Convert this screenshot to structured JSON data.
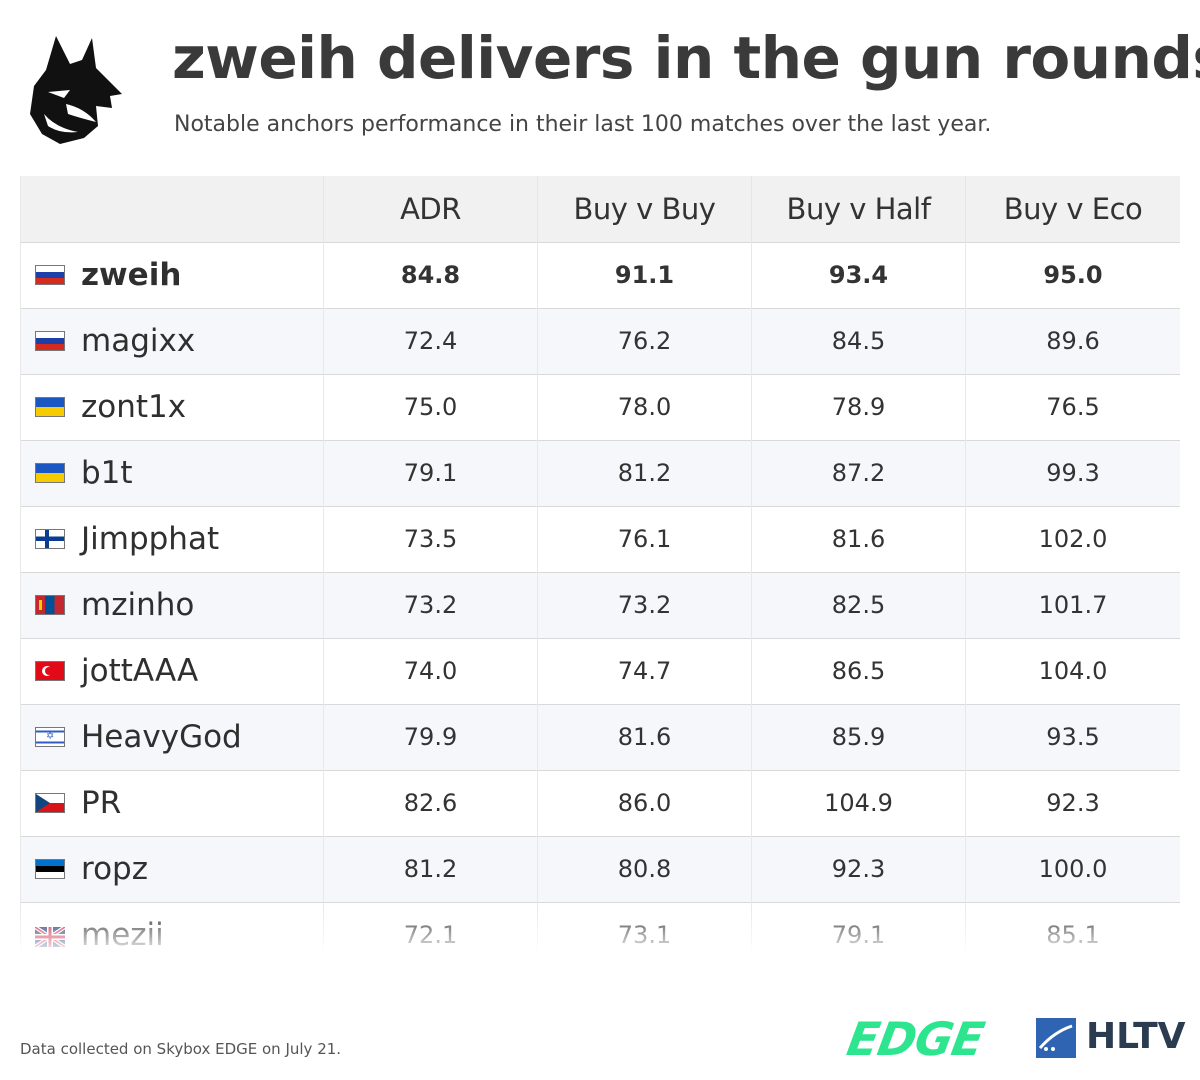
{
  "header": {
    "title": "zweih delivers in the gun rounds",
    "subtitle": "Notable anchors performance in their last 100 matches over the last year."
  },
  "icons": {
    "team_logo": "wolf-head-logo-icon",
    "hltv_mark": "hltv-shield-icon"
  },
  "colors": {
    "edge_green": "#2ee58f",
    "hltv_blue": "#2f64b2",
    "header_row_bg": "#f1f1f1",
    "alt_row_bg": "#f6f7fb"
  },
  "table": {
    "columns": [
      "",
      "ADR",
      "Buy v Buy",
      "Buy v Half",
      "Buy v Eco"
    ],
    "rows": [
      {
        "player": "zweih",
        "flag": "ru",
        "values": [
          "84.8",
          "91.1",
          "93.4",
          "95.0"
        ],
        "highlight": true
      },
      {
        "player": "magixx",
        "flag": "ru",
        "values": [
          "72.4",
          "76.2",
          "84.5",
          "89.6"
        ]
      },
      {
        "player": "zont1x",
        "flag": "ua",
        "values": [
          "75.0",
          "78.0",
          "78.9",
          "76.5"
        ]
      },
      {
        "player": "b1t",
        "flag": "ua",
        "values": [
          "79.1",
          "81.2",
          "87.2",
          "99.3"
        ]
      },
      {
        "player": "Jimpphat",
        "flag": "fi",
        "values": [
          "73.5",
          "76.1",
          "81.6",
          "102.0"
        ]
      },
      {
        "player": "mzinho",
        "flag": "mn",
        "values": [
          "73.2",
          "73.2",
          "82.5",
          "101.7"
        ]
      },
      {
        "player": "jottAAA",
        "flag": "tr",
        "values": [
          "74.0",
          "74.7",
          "86.5",
          "104.0"
        ]
      },
      {
        "player": "HeavyGod",
        "flag": "il",
        "values": [
          "79.9",
          "81.6",
          "85.9",
          "93.5"
        ]
      },
      {
        "player": "PR",
        "flag": "cz",
        "values": [
          "82.6",
          "86.0",
          "104.9",
          "92.3"
        ]
      },
      {
        "player": "ropz",
        "flag": "ee",
        "values": [
          "81.2",
          "80.8",
          "92.3",
          "100.0"
        ]
      },
      {
        "player": "mezii",
        "flag": "gb",
        "values": [
          "72.1",
          "73.1",
          "79.1",
          "85.1"
        ]
      }
    ]
  },
  "chart_data": {
    "type": "table",
    "title": "zweih delivers in the gun rounds",
    "subtitle": "Notable anchors performance in their last 100 matches over the last year.",
    "columns": [
      "ADR",
      "Buy v Buy",
      "Buy v Half",
      "Buy v Eco"
    ],
    "categories": [
      "zweih",
      "magixx",
      "zont1x",
      "b1t",
      "Jimpphat",
      "mzinho",
      "jottAAA",
      "HeavyGod",
      "PR",
      "ropz",
      "mezii"
    ],
    "series": [
      {
        "name": "ADR",
        "values": [
          84.8,
          72.4,
          75.0,
          79.1,
          73.5,
          73.2,
          74.0,
          79.9,
          82.6,
          81.2,
          72.1
        ]
      },
      {
        "name": "Buy v Buy",
        "values": [
          91.1,
          76.2,
          78.0,
          81.2,
          76.1,
          73.2,
          74.7,
          81.6,
          86.0,
          80.8,
          73.1
        ]
      },
      {
        "name": "Buy v Half",
        "values": [
          93.4,
          84.5,
          78.9,
          87.2,
          81.6,
          82.5,
          86.5,
          85.9,
          104.9,
          92.3,
          79.1
        ]
      },
      {
        "name": "Buy v Eco",
        "values": [
          95.0,
          89.6,
          76.5,
          99.3,
          102.0,
          101.7,
          104.0,
          93.5,
          92.3,
          100.0,
          85.1
        ]
      }
    ]
  },
  "footer": {
    "note": "Data collected on Skybox EDGE on July 21.",
    "edge_label": "EDGE",
    "hltv_label": "HLTV"
  }
}
